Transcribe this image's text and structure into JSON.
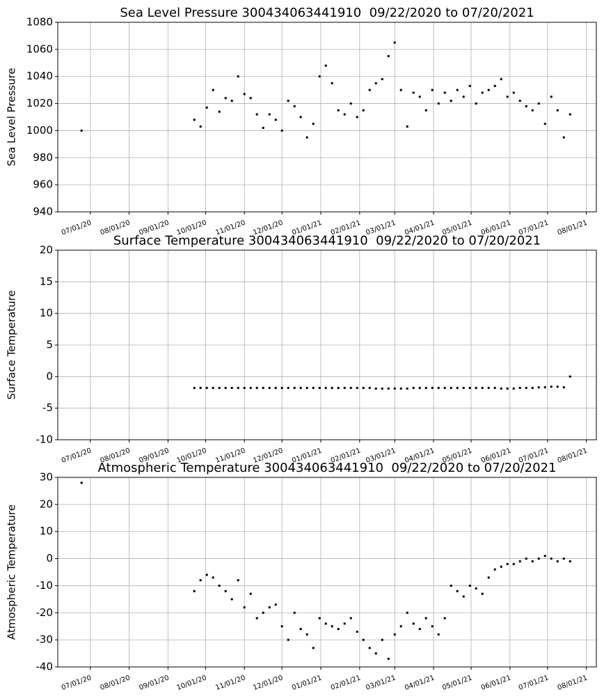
{
  "chart_data": [
    {
      "type": "scatter",
      "title": "Sea Level Pressure 300434063441910  09/22/2020 to 07/20/2021",
      "ylabel": "Sea Level Pressure",
      "color": "#000000",
      "grid": true,
      "xlim": [
        "2020-06-05",
        "2021-08-09"
      ],
      "ylim": [
        940,
        1080
      ],
      "yticks": [
        940,
        960,
        980,
        1000,
        1020,
        1040,
        1060,
        1080
      ],
      "xticks": [
        {
          "value": "2020-07-01",
          "label": "07/01/20"
        },
        {
          "value": "2020-08-01",
          "label": "08/01/20"
        },
        {
          "value": "2020-09-01",
          "label": "09/01/20"
        },
        {
          "value": "2020-10-01",
          "label": "10/01/20"
        },
        {
          "value": "2020-11-01",
          "label": "11/01/20"
        },
        {
          "value": "2020-12-01",
          "label": "12/01/20"
        },
        {
          "value": "2021-01-01",
          "label": "01/01/21"
        },
        {
          "value": "2021-02-01",
          "label": "02/01/21"
        },
        {
          "value": "2021-03-01",
          "label": "03/01/21"
        },
        {
          "value": "2021-04-01",
          "label": "04/01/21"
        },
        {
          "value": "2021-05-01",
          "label": "05/01/21"
        },
        {
          "value": "2021-06-01",
          "label": "06/01/21"
        },
        {
          "value": "2021-07-01",
          "label": "07/01/21"
        },
        {
          "value": "2021-08-01",
          "label": "08/01/21"
        }
      ],
      "x": [
        "2020-06-24",
        "2020-09-22",
        "2020-09-27",
        "2020-10-02",
        "2020-10-07",
        "2020-10-12",
        "2020-10-17",
        "2020-10-22",
        "2020-10-27",
        "2020-11-01",
        "2020-11-06",
        "2020-11-11",
        "2020-11-16",
        "2020-11-21",
        "2020-11-26",
        "2020-12-01",
        "2020-12-06",
        "2020-12-11",
        "2020-12-16",
        "2020-12-21",
        "2020-12-26",
        "2020-12-31",
        "2021-01-05",
        "2021-01-10",
        "2021-01-15",
        "2021-01-20",
        "2021-01-25",
        "2021-01-30",
        "2021-02-04",
        "2021-02-09",
        "2021-02-14",
        "2021-02-19",
        "2021-02-24",
        "2021-03-01",
        "2021-03-06",
        "2021-03-11",
        "2021-03-16",
        "2021-03-21",
        "2021-03-26",
        "2021-03-31",
        "2021-04-05",
        "2021-04-10",
        "2021-04-15",
        "2021-04-20",
        "2021-04-25",
        "2021-04-30",
        "2021-05-05",
        "2021-05-10",
        "2021-05-15",
        "2021-05-20",
        "2021-05-25",
        "2021-05-30",
        "2021-06-04",
        "2021-06-09",
        "2021-06-14",
        "2021-06-19",
        "2021-06-24",
        "2021-06-29",
        "2021-07-04",
        "2021-07-09",
        "2021-07-14",
        "2021-07-19"
      ],
      "values": [
        1000,
        1008,
        1003,
        1017,
        1030,
        1014,
        1024,
        1022,
        1040,
        1027,
        1024,
        1012,
        1002,
        1012,
        1008,
        1000,
        1022,
        1018,
        1010,
        995,
        1005,
        1040,
        1048,
        1035,
        1015,
        1012,
        1020,
        1010,
        1015,
        1030,
        1035,
        1038,
        1055,
        1065,
        1030,
        1003,
        1028,
        1025,
        1015,
        1030,
        1020,
        1028,
        1022,
        1030,
        1025,
        1033,
        1020,
        1028,
        1030,
        1033,
        1038,
        1025,
        1028,
        1022,
        1018,
        1015,
        1020,
        1005,
        1025,
        1015,
        995,
        1012
      ]
    },
    {
      "type": "scatter",
      "title": "Surface Temperature 300434063441910  09/22/2020 to 07/20/2021",
      "ylabel": "Surface Temperature",
      "color": "#000000",
      "grid": true,
      "xlim": [
        "2020-06-05",
        "2021-08-09"
      ],
      "ylim": [
        -10,
        20
      ],
      "yticks": [
        -10,
        -5,
        0,
        5,
        10,
        15,
        20
      ],
      "xticks": [
        {
          "value": "2020-07-01",
          "label": "07/01/20"
        },
        {
          "value": "2020-08-01",
          "label": "08/01/20"
        },
        {
          "value": "2020-09-01",
          "label": "09/01/20"
        },
        {
          "value": "2020-10-01",
          "label": "10/01/20"
        },
        {
          "value": "2020-11-01",
          "label": "11/01/20"
        },
        {
          "value": "2020-12-01",
          "label": "12/01/20"
        },
        {
          "value": "2021-01-01",
          "label": "01/01/21"
        },
        {
          "value": "2021-02-01",
          "label": "02/01/21"
        },
        {
          "value": "2021-03-01",
          "label": "03/01/21"
        },
        {
          "value": "2021-04-01",
          "label": "04/01/21"
        },
        {
          "value": "2021-05-01",
          "label": "05/01/21"
        },
        {
          "value": "2021-06-01",
          "label": "06/01/21"
        },
        {
          "value": "2021-07-01",
          "label": "07/01/21"
        },
        {
          "value": "2021-08-01",
          "label": "08/01/21"
        }
      ],
      "x": [
        "2020-09-22",
        "2020-09-27",
        "2020-10-02",
        "2020-10-07",
        "2020-10-12",
        "2020-10-17",
        "2020-10-22",
        "2020-10-27",
        "2020-11-01",
        "2020-11-06",
        "2020-11-11",
        "2020-11-16",
        "2020-11-21",
        "2020-11-26",
        "2020-12-01",
        "2020-12-06",
        "2020-12-11",
        "2020-12-16",
        "2020-12-21",
        "2020-12-26",
        "2020-12-31",
        "2021-01-05",
        "2021-01-10",
        "2021-01-15",
        "2021-01-20",
        "2021-01-25",
        "2021-01-30",
        "2021-02-04",
        "2021-02-09",
        "2021-02-14",
        "2021-02-19",
        "2021-02-24",
        "2021-03-01",
        "2021-03-06",
        "2021-03-11",
        "2021-03-16",
        "2021-03-21",
        "2021-03-26",
        "2021-03-31",
        "2021-04-05",
        "2021-04-10",
        "2021-04-15",
        "2021-04-20",
        "2021-04-25",
        "2021-04-30",
        "2021-05-05",
        "2021-05-10",
        "2021-05-15",
        "2021-05-20",
        "2021-05-25",
        "2021-05-30",
        "2021-06-04",
        "2021-06-09",
        "2021-06-14",
        "2021-06-19",
        "2021-06-24",
        "2021-06-29",
        "2021-07-04",
        "2021-07-09",
        "2021-07-14",
        "2021-07-19"
      ],
      "values": [
        -1.8,
        -1.8,
        -1.8,
        -1.8,
        -1.8,
        -1.8,
        -1.8,
        -1.8,
        -1.8,
        -1.8,
        -1.8,
        -1.8,
        -1.8,
        -1.8,
        -1.8,
        -1.8,
        -1.8,
        -1.8,
        -1.8,
        -1.8,
        -1.8,
        -1.8,
        -1.8,
        -1.8,
        -1.8,
        -1.8,
        -1.8,
        -1.8,
        -1.8,
        -1.9,
        -1.9,
        -1.9,
        -1.9,
        -1.9,
        -1.9,
        -1.8,
        -1.8,
        -1.8,
        -1.8,
        -1.8,
        -1.8,
        -1.8,
        -1.8,
        -1.8,
        -1.8,
        -1.8,
        -1.8,
        -1.8,
        -1.8,
        -1.9,
        -1.9,
        -1.9,
        -1.8,
        -1.8,
        -1.8,
        -1.7,
        -1.7,
        -1.6,
        -1.6,
        -1.7,
        0
      ]
    },
    {
      "type": "scatter",
      "title": "Atmospheric Temperature 300434063441910  09/22/2020 to 07/20/2021",
      "ylabel": "Atmospheric Temperature",
      "color": "#000000",
      "grid": true,
      "xlim": [
        "2020-06-05",
        "2021-08-09"
      ],
      "ylim": [
        -40,
        30
      ],
      "yticks": [
        -40,
        -30,
        -20,
        -10,
        0,
        10,
        20,
        30
      ],
      "xticks": [
        {
          "value": "2020-07-01",
          "label": "07/01/20"
        },
        {
          "value": "2020-08-01",
          "label": "08/01/20"
        },
        {
          "value": "2020-09-01",
          "label": "09/01/20"
        },
        {
          "value": "2020-10-01",
          "label": "10/01/20"
        },
        {
          "value": "2020-11-01",
          "label": "11/01/20"
        },
        {
          "value": "2020-12-01",
          "label": "12/01/20"
        },
        {
          "value": "2021-01-01",
          "label": "01/01/21"
        },
        {
          "value": "2021-02-01",
          "label": "02/01/21"
        },
        {
          "value": "2021-03-01",
          "label": "03/01/21"
        },
        {
          "value": "2021-04-01",
          "label": "04/01/21"
        },
        {
          "value": "2021-05-01",
          "label": "05/01/21"
        },
        {
          "value": "2021-06-01",
          "label": "06/01/21"
        },
        {
          "value": "2021-07-01",
          "label": "07/01/21"
        },
        {
          "value": "2021-08-01",
          "label": "08/01/21"
        }
      ],
      "x": [
        "2020-06-24",
        "2020-09-22",
        "2020-09-27",
        "2020-10-02",
        "2020-10-07",
        "2020-10-12",
        "2020-10-17",
        "2020-10-22",
        "2020-10-27",
        "2020-11-01",
        "2020-11-06",
        "2020-11-11",
        "2020-11-16",
        "2020-11-21",
        "2020-11-26",
        "2020-12-01",
        "2020-12-06",
        "2020-12-11",
        "2020-12-16",
        "2020-12-21",
        "2020-12-26",
        "2020-12-31",
        "2021-01-05",
        "2021-01-10",
        "2021-01-15",
        "2021-01-20",
        "2021-01-25",
        "2021-01-30",
        "2021-02-04",
        "2021-02-09",
        "2021-02-14",
        "2021-02-19",
        "2021-02-24",
        "2021-03-01",
        "2021-03-06",
        "2021-03-11",
        "2021-03-16",
        "2021-03-21",
        "2021-03-26",
        "2021-03-31",
        "2021-04-05",
        "2021-04-10",
        "2021-04-15",
        "2021-04-20",
        "2021-04-25",
        "2021-04-30",
        "2021-05-05",
        "2021-05-10",
        "2021-05-15",
        "2021-05-20",
        "2021-05-25",
        "2021-05-30",
        "2021-06-04",
        "2021-06-09",
        "2021-06-14",
        "2021-06-19",
        "2021-06-24",
        "2021-06-29",
        "2021-07-04",
        "2021-07-09",
        "2021-07-14",
        "2021-07-19"
      ],
      "values": [
        28,
        -12,
        -8,
        -6,
        -7,
        -10,
        -12,
        -15,
        -8,
        -18,
        -13,
        -22,
        -20,
        -18,
        -17,
        -25,
        -30,
        -20,
        -26,
        -28,
        -33,
        -22,
        -24,
        -25,
        -26,
        -24,
        -22,
        -27,
        -30,
        -33,
        -35,
        -30,
        -37,
        -28,
        -25,
        -20,
        -24,
        -26,
        -22,
        -25,
        -28,
        -22,
        -10,
        -12,
        -14,
        -10,
        -11,
        -13,
        -7,
        -4,
        -3,
        -2,
        -2,
        -1,
        0,
        -1,
        0,
        1,
        0,
        -1,
        0,
        -1
      ]
    }
  ]
}
